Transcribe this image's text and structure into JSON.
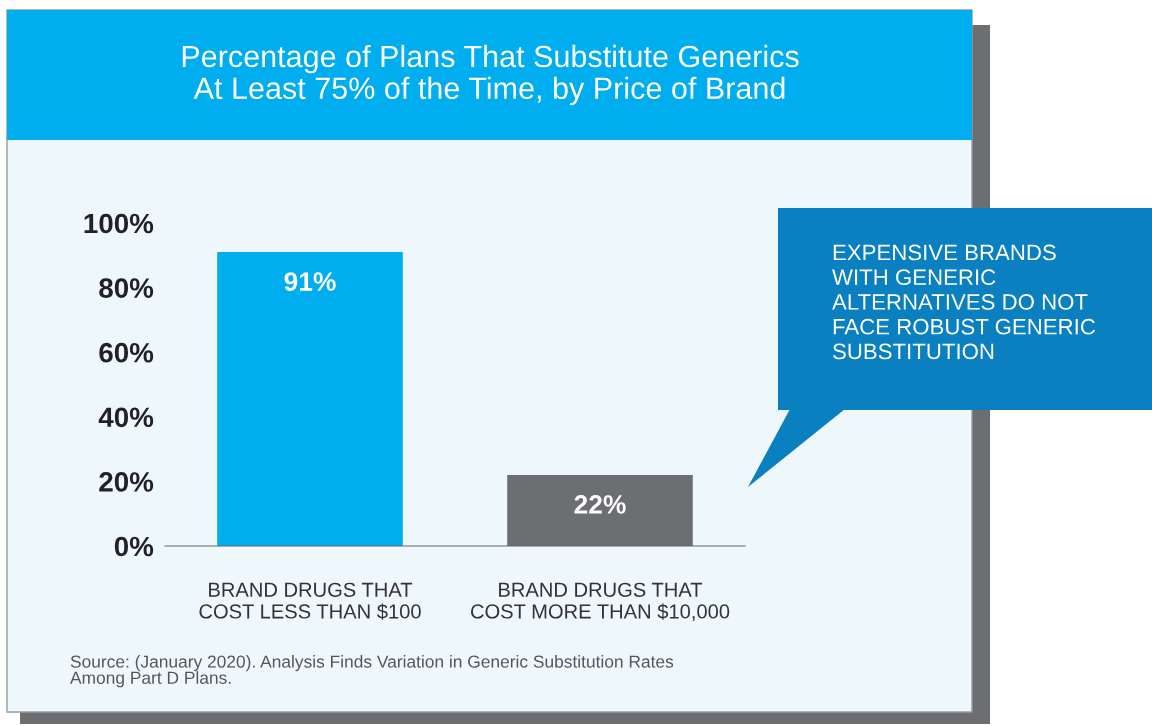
{
  "chart_data": {
    "type": "bar",
    "title": "Percentage of Plans That Substitute Generics\nAt Least 75% of the Time, by Price of Brand",
    "categories": [
      "BRAND DRUGS THAT\nCOST LESS THAN $100",
      "BRAND DRUGS THAT\nCOST MORE THAN $10,000"
    ],
    "values": [
      91,
      22
    ],
    "colors": [
      "#00aeef",
      "#6d6e71"
    ],
    "value_labels": [
      "91%",
      "22%"
    ],
    "ylim": [
      0,
      100
    ],
    "yticks": [
      {
        "value": 0,
        "label": "0%"
      },
      {
        "value": 20,
        "label": "20%"
      },
      {
        "value": 40,
        "label": "40%"
      },
      {
        "value": 60,
        "label": "60%"
      },
      {
        "value": 80,
        "label": "80%"
      },
      {
        "value": 100,
        "label": "100%"
      }
    ],
    "grid": false,
    "legend": false,
    "annotations": [
      "EXPENSIVE BRANDS\nWITH GENERIC\nALTERNATIVES DO NOT\nFACE ROBUST GENERIC\nSUBSTITUTION",
      "Source: (January 2020). Analysis Finds Variation in Generic Substitution Rates\nAmong Part D Plans."
    ]
  }
}
